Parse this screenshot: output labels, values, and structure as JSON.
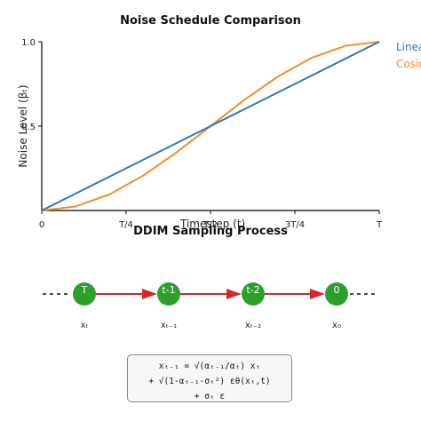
{
  "chart_title": "Noise Schedule Comparison",
  "process_title": "DDIM Sampling Process",
  "chart_data": {
    "type": "line",
    "title": "Noise Schedule Comparison",
    "xlabel": "Timestep (t)",
    "ylabel": "Noise Level (βₜ)",
    "x_ticks": [
      "0",
      "T/4",
      "T/2",
      "3T/4",
      "T"
    ],
    "y_ticks": [
      "1.0",
      "0.5"
    ],
    "xlim": [
      0,
      1
    ],
    "ylim": [
      0,
      1
    ],
    "legend_placement": "right",
    "series": [
      {
        "name": "Linear",
        "color": "#2c7bb6",
        "x": [
          0,
          0.25,
          0.5,
          0.75,
          1
        ],
        "y": [
          0,
          0.25,
          0.5,
          0.75,
          1
        ]
      },
      {
        "name": "Cosine",
        "color": "#f28e2b",
        "x": [
          0,
          0.1,
          0.2,
          0.3,
          0.4,
          0.5,
          0.6,
          0.7,
          0.8,
          0.9,
          1.0
        ],
        "y": [
          0,
          0.024,
          0.095,
          0.206,
          0.345,
          0.5,
          0.655,
          0.794,
          0.905,
          0.976,
          1.0
        ]
      }
    ]
  },
  "sampling": {
    "nodes": [
      {
        "label": "T",
        "sub": "xₜ"
      },
      {
        "label": "t-1",
        "sub": "xₜ₋₁"
      },
      {
        "label": "t-2",
        "sub": "xₜ₋₂"
      },
      {
        "label": "0",
        "sub": "x₀"
      }
    ],
    "node_color": "#2ca02c",
    "arrow_color": "#d62728"
  },
  "formula": {
    "line1": "xₜ₋₁ = √(αₜ₋₁/αₜ) xₜ",
    "line2": "+ √(1-αₜ₋₁-σₜ²) εθ(xₜ,t)",
    "line3": "+ σₜ ε"
  }
}
